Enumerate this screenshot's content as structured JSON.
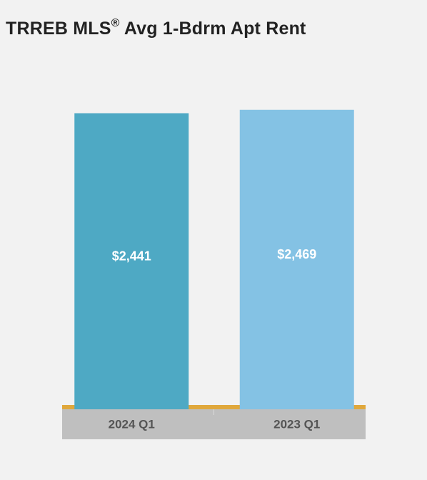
{
  "chart_data": {
    "type": "bar",
    "title_main": "TRREB MLS",
    "title_mark": "®",
    "title_rest": " Avg 1-Bdrm Apt Rent",
    "categories": [
      "2024 Q1",
      "2023 Q1"
    ],
    "values": [
      2441,
      2469
    ],
    "value_labels": [
      "$2,441",
      "$2,469"
    ],
    "colors": [
      "#4ea9c4",
      "#84c2e4"
    ],
    "axis_band_color": "#bfbfbf",
    "baseline_color": "#e0a83c",
    "ylim": [
      0,
      2550
    ],
    "grid": false,
    "legend": "none"
  }
}
